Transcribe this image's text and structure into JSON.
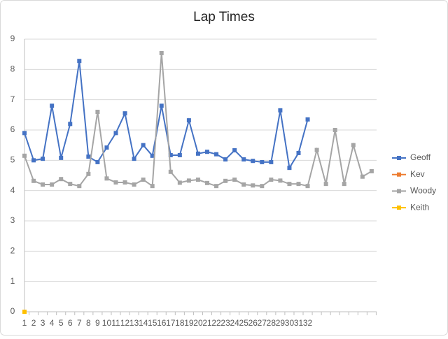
{
  "chart_data": {
    "type": "line",
    "title": "Lap Times",
    "categories": [
      "1",
      "2",
      "3",
      "4",
      "5",
      "6",
      "7",
      "8",
      "9",
      "10",
      "11",
      "12",
      "13",
      "14",
      "15",
      "16",
      "17",
      "18",
      "19",
      "20",
      "21",
      "22",
      "23",
      "24",
      "25",
      "26",
      "27",
      "28",
      "29",
      "30",
      "31",
      "32",
      null,
      null,
      null,
      null,
      null,
      null,
      null
    ],
    "series": [
      {
        "name": "Geoff",
        "color": "#4472c4",
        "values": [
          5.9,
          5.0,
          5.05,
          6.8,
          5.08,
          6.2,
          8.28,
          5.12,
          4.94,
          5.42,
          5.9,
          6.55,
          5.05,
          5.5,
          5.15,
          6.8,
          5.17,
          5.17,
          6.32,
          5.22,
          5.28,
          5.2,
          5.03,
          5.33,
          5.03,
          4.98,
          4.94,
          4.94,
          6.65,
          4.75,
          5.24,
          6.35,
          null,
          null,
          null,
          null,
          null,
          null,
          null
        ]
      },
      {
        "name": "Kev",
        "color": "#ed7d31",
        "values": [
          null,
          null,
          null,
          null,
          null,
          null,
          null,
          null,
          null,
          null,
          null,
          null,
          null,
          null,
          null,
          null,
          null,
          null,
          null,
          null,
          null,
          null,
          null,
          null,
          null,
          null,
          null,
          null,
          null,
          null,
          null,
          null,
          null,
          null,
          null,
          null,
          null,
          null,
          null
        ]
      },
      {
        "name": "Woody",
        "color": "#a5a5a5",
        "values": [
          5.15,
          4.32,
          4.2,
          4.2,
          4.38,
          4.22,
          4.15,
          4.55,
          6.6,
          4.4,
          4.27,
          4.27,
          4.2,
          4.36,
          4.15,
          8.54,
          4.62,
          4.26,
          4.33,
          4.36,
          4.25,
          4.15,
          4.32,
          4.36,
          4.2,
          4.17,
          4.15,
          4.36,
          4.33,
          4.22,
          4.22,
          4.15,
          5.34,
          4.22,
          6.0,
          4.22,
          5.5,
          4.46,
          4.64
        ]
      },
      {
        "name": "Keith",
        "color": "#ffc000",
        "values": [
          0,
          null,
          null,
          null,
          null,
          null,
          null,
          null,
          null,
          null,
          null,
          null,
          null,
          null,
          null,
          null,
          null,
          null,
          null,
          null,
          null,
          null,
          null,
          null,
          null,
          null,
          null,
          null,
          null,
          null,
          null,
          null,
          null,
          null,
          null,
          null,
          null,
          null,
          null
        ]
      }
    ],
    "ylim": [
      0,
      9
    ],
    "yticks": [
      0,
      1,
      2,
      3,
      4,
      5,
      6,
      7,
      8,
      9
    ],
    "grid": true,
    "legend": "right"
  }
}
